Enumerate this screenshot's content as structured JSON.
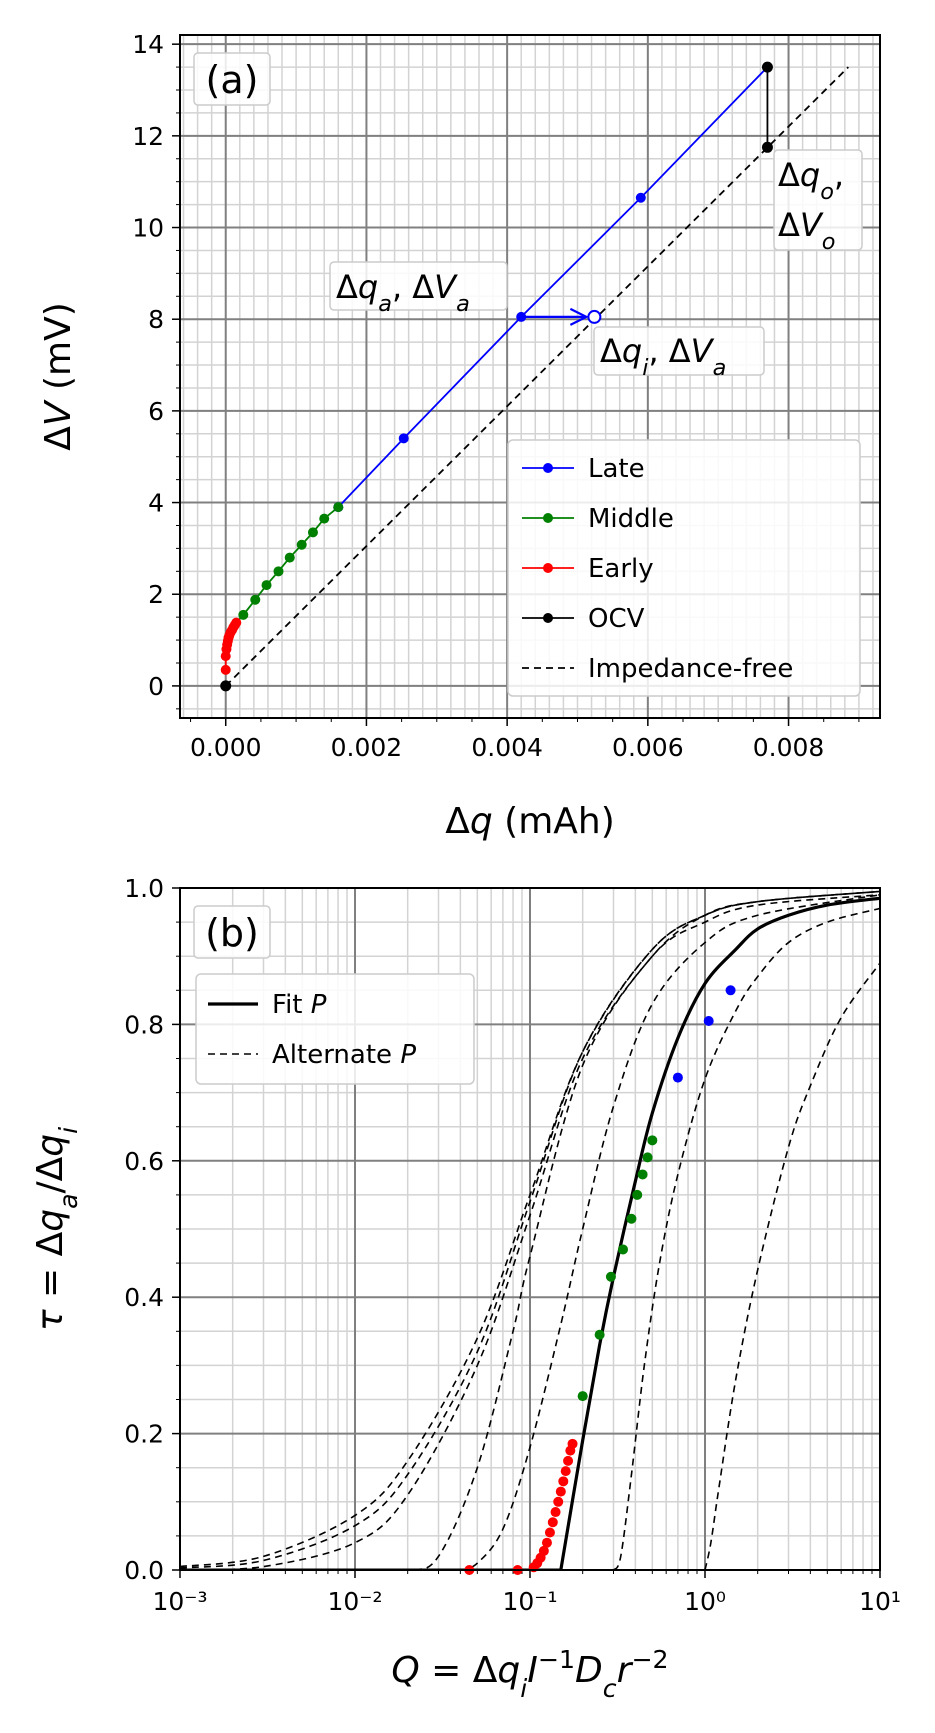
{
  "chart_data": [
    {
      "panel_label": "(a)",
      "type": "line",
      "xlabel": "Δq (mAh)",
      "ylabel": "ΔV (mV)",
      "xlim": [
        -0.00065,
        0.0093
      ],
      "ylim": [
        -0.7,
        14.2
      ],
      "xticks": [
        0.0,
        0.002,
        0.004,
        0.006,
        0.008
      ],
      "xtick_labels": [
        "0.000",
        "0.002",
        "0.004",
        "0.006",
        "0.008"
      ],
      "yticks": [
        0,
        2,
        4,
        6,
        8,
        10,
        12,
        14
      ],
      "ytick_labels": [
        "0",
        "2",
        "4",
        "6",
        "8",
        "10",
        "12",
        "14"
      ],
      "grid": true,
      "legend_position": "lower-right",
      "series": [
        {
          "name": "Late",
          "color": "#0000ff",
          "style": "solid-marker",
          "x": [
            0.0016,
            0.00253,
            0.0042,
            0.0059,
            0.0077
          ],
          "y": [
            3.9,
            5.4,
            8.05,
            10.65,
            13.5
          ]
        },
        {
          "name": "Middle",
          "color": "#008000",
          "style": "solid-marker",
          "x": [
            0.00025,
            0.00042,
            0.00058,
            0.00075,
            0.00091,
            0.00108,
            0.00124,
            0.0014,
            0.0016
          ],
          "y": [
            1.55,
            1.88,
            2.2,
            2.5,
            2.8,
            3.08,
            3.35,
            3.65,
            3.9
          ],
          "note": "connected from last Early point"
        },
        {
          "name": "Early",
          "color": "#ff0000",
          "style": "solid-marker",
          "x": [
            0.0,
            0.0,
            1e-05,
            2e-05,
            3e-05,
            4e-05,
            5e-05,
            7e-05,
            9e-05,
            0.00011,
            0.00013,
            0.00015
          ],
          "y": [
            0.35,
            0.65,
            0.8,
            0.9,
            0.98,
            1.05,
            1.1,
            1.17,
            1.22,
            1.28,
            1.33,
            1.38
          ]
        },
        {
          "name": "OCV",
          "color": "#000000",
          "style": "solid-marker",
          "points": [
            [
              0.0,
              0.0
            ],
            [
              0.0077,
              13.5
            ],
            [
              0.0077,
              11.75
            ]
          ],
          "segments": [
            [
              [
                0.0077,
                13.5
              ],
              [
                0.0077,
                11.75
              ]
            ]
          ]
        },
        {
          "name": "Impedance-free",
          "color": "#000000",
          "style": "dashed",
          "x": [
            0.0,
            0.00885
          ],
          "y": [
            0.0,
            13.5
          ]
        }
      ],
      "annotations": [
        {
          "text": "Δq_a, ΔV_a",
          "at": [
            0.0042,
            8.05
          ]
        },
        {
          "text": "Δq_i, ΔV_a",
          "at": [
            0.00524,
            8.05
          ],
          "marker": "open-circle-blue"
        },
        {
          "text_line1": "Δq_o,",
          "text_line2": "ΔV_o",
          "at": [
            0.0077,
            11.75
          ]
        }
      ],
      "arrow": {
        "from": [
          0.0042,
          8.05
        ],
        "to": [
          0.00524,
          8.05
        ],
        "color": "#0000ff"
      }
    },
    {
      "panel_label": "(b)",
      "type": "scatter",
      "xlabel": "Q = Δq_i I^-1 D_c r^-2",
      "ylabel": "τ = Δq_a/Δq_i",
      "xscale": "log",
      "xlim": [
        0.001,
        10
      ],
      "ylim": [
        0.0,
        1.0
      ],
      "xtick_labels": [
        "10⁻³",
        "10⁻²",
        "10⁻¹",
        "10⁰",
        "10¹"
      ],
      "yticks": [
        0.0,
        0.2,
        0.4,
        0.6,
        0.8,
        1.0
      ],
      "ytick_labels": [
        "0.0",
        "0.2",
        "0.4",
        "0.6",
        "0.8",
        "1.0"
      ],
      "grid": true,
      "legend_position": "upper-left",
      "legend": [
        {
          "name": "Fit P",
          "style": "solid"
        },
        {
          "name": "Alternate P",
          "style": "dashed"
        }
      ],
      "fit_curve": {
        "name": "Fit P",
        "x": [
          0.04,
          0.08,
          0.1,
          0.12,
          0.15,
          0.2,
          0.25,
          0.3,
          0.4,
          0.5,
          0.7,
          1.0,
          1.5,
          2.0,
          3.0,
          5.0,
          10.0
        ],
        "y": [
          0.0,
          0.0,
          0.0,
          0.0,
          0.0,
          0.19,
          0.33,
          0.43,
          0.57,
          0.67,
          0.78,
          0.86,
          0.91,
          0.94,
          0.96,
          0.975,
          0.985
        ]
      },
      "alternate_curves": [
        {
          "x": [
            0.001,
            0.003,
            0.01,
            0.02,
            0.05,
            0.1,
            0.2,
            0.5,
            1.0,
            2.0,
            10.0
          ],
          "y": [
            0.005,
            0.02,
            0.08,
            0.16,
            0.34,
            0.55,
            0.76,
            0.91,
            0.96,
            0.98,
            0.995
          ]
        },
        {
          "x": [
            0.001,
            0.003,
            0.01,
            0.02,
            0.05,
            0.1,
            0.2,
            0.5,
            1.0,
            2.0,
            10.0
          ],
          "y": [
            0.003,
            0.014,
            0.065,
            0.14,
            0.32,
            0.54,
            0.76,
            0.91,
            0.96,
            0.98,
            0.995
          ]
        },
        {
          "x": [
            0.001,
            0.003,
            0.01,
            0.02,
            0.05,
            0.1,
            0.2,
            0.5,
            1.0,
            2.0,
            10.0
          ],
          "y": [
            0.0,
            0.005,
            0.04,
            0.11,
            0.3,
            0.52,
            0.75,
            0.9,
            0.96,
            0.98,
            0.995
          ]
        },
        {
          "x": [
            0.01,
            0.02,
            0.03,
            0.05,
            0.08,
            0.1,
            0.2,
            0.5,
            1.0,
            2.0,
            10.0
          ],
          "y": [
            0.0,
            0.0,
            0.02,
            0.15,
            0.35,
            0.46,
            0.74,
            0.9,
            0.95,
            0.975,
            0.99
          ]
        },
        {
          "x": [
            0.04,
            0.05,
            0.07,
            0.1,
            0.15,
            0.2,
            0.3,
            0.5,
            1.0,
            2.0,
            10.0
          ],
          "y": [
            0.0,
            0.01,
            0.06,
            0.18,
            0.36,
            0.5,
            0.68,
            0.83,
            0.92,
            0.96,
            0.99
          ]
        },
        {
          "x": [
            0.3,
            0.33,
            0.38,
            0.45,
            0.55,
            0.7,
            1.0,
            1.5,
            2.0,
            3.0,
            5.0,
            10.0
          ],
          "y": [
            0.0,
            0.02,
            0.14,
            0.3,
            0.45,
            0.58,
            0.72,
            0.82,
            0.87,
            0.92,
            0.95,
            0.97
          ]
        },
        {
          "x": [
            1.0,
            1.08,
            1.2,
            1.5,
            2.0,
            3.0,
            4.0,
            6.0,
            10.0
          ],
          "y": [
            0.0,
            0.04,
            0.12,
            0.28,
            0.44,
            0.62,
            0.71,
            0.81,
            0.89
          ]
        }
      ],
      "series": [
        {
          "name": "Early",
          "color": "#ff0000",
          "x": [
            0.045,
            0.085,
            0.105,
            0.11,
            0.115,
            0.12,
            0.125,
            0.13,
            0.135,
            0.14,
            0.145,
            0.15,
            0.155,
            0.16,
            0.165,
            0.17,
            0.175
          ],
          "y": [
            0.0,
            0.0,
            0.004,
            0.01,
            0.018,
            0.028,
            0.04,
            0.055,
            0.07,
            0.085,
            0.1,
            0.115,
            0.13,
            0.145,
            0.16,
            0.175,
            0.185
          ]
        },
        {
          "name": "Middle",
          "color": "#008000",
          "x": [
            0.2,
            0.25,
            0.29,
            0.34,
            0.38,
            0.41,
            0.44,
            0.47,
            0.5
          ],
          "y": [
            0.255,
            0.345,
            0.43,
            0.47,
            0.515,
            0.55,
            0.58,
            0.605,
            0.63
          ]
        },
        {
          "name": "Late",
          "color": "#0000ff",
          "x": [
            0.7,
            1.05,
            1.4
          ],
          "y": [
            0.722,
            0.805,
            0.85
          ]
        }
      ]
    }
  ]
}
